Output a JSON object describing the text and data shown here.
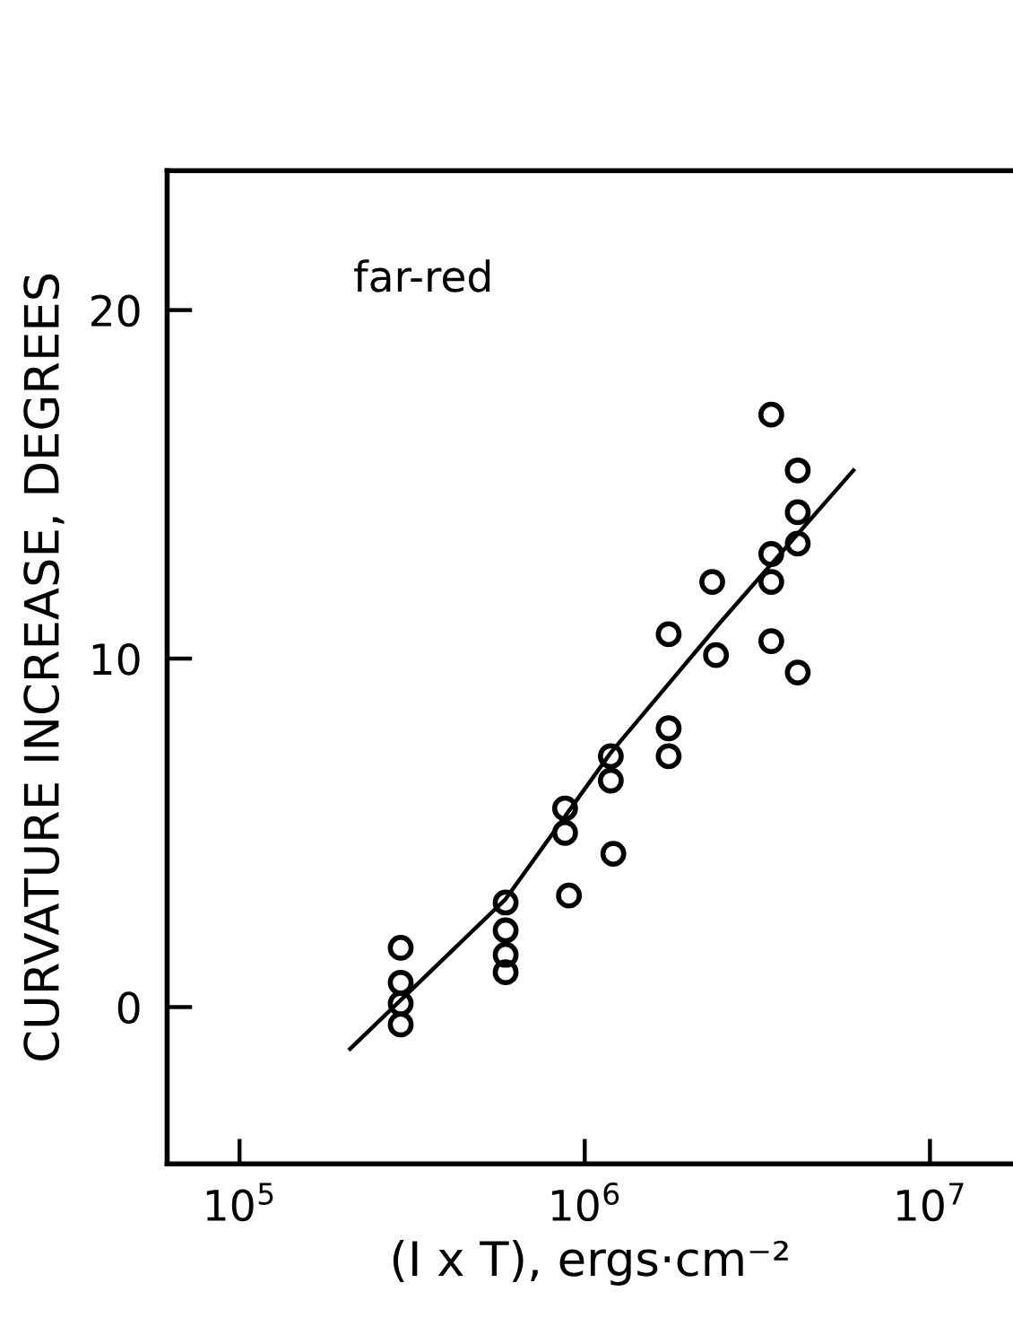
{
  "chart_data": {
    "type": "scatter",
    "xlabel": "(I x T), ergs·cm⁻²",
    "ylabel": "CURVATURE INCREASE, DEGREES",
    "annotations": [
      "far-red"
    ],
    "log": "x",
    "xlim": [
      61700,
      17400000
    ],
    "xticks": [
      {
        "value": 100000,
        "label": "10$^{5}$"
      },
      {
        "value": 1000000,
        "label": "10$^{6}$"
      },
      {
        "value": 10000000,
        "label": "10$^{7}$"
      }
    ],
    "ylim": [
      -4.5,
      24
    ],
    "yticks": [
      0,
      10,
      20
    ],
    "series": [
      {
        "marker": "circle",
        "color": "#000000",
        "x": [
          293000,
          293000,
          293000,
          293000,
          590000,
          590000,
          590000,
          590000,
          877000,
          877000,
          900000,
          1190000,
          1190000,
          1210000,
          1750000,
          1750000,
          1750000,
          2340000,
          2400000,
          3470000,
          3470000,
          3470000,
          3470000,
          4140000,
          4140000,
          4140000,
          4140000
        ],
        "values": [
          1.7,
          0.7,
          0.1,
          -0.5,
          3.0,
          2.2,
          1.5,
          1.0,
          5.7,
          5.0,
          3.2,
          7.2,
          6.5,
          4.4,
          10.7,
          8.0,
          7.2,
          12.2,
          10.1,
          17.0,
          13.0,
          12.2,
          10.5,
          15.4,
          14.2,
          13.3,
          9.6
        ]
      },
      {
        "type": "line",
        "color": "#000000",
        "line_style": "solid",
        "x": [
          209000,
          590000,
          1190000,
          2450000,
          6000000
        ],
        "values": [
          -1.2,
          3.1,
          7.3,
          11.0,
          15.4
        ]
      }
    ]
  }
}
